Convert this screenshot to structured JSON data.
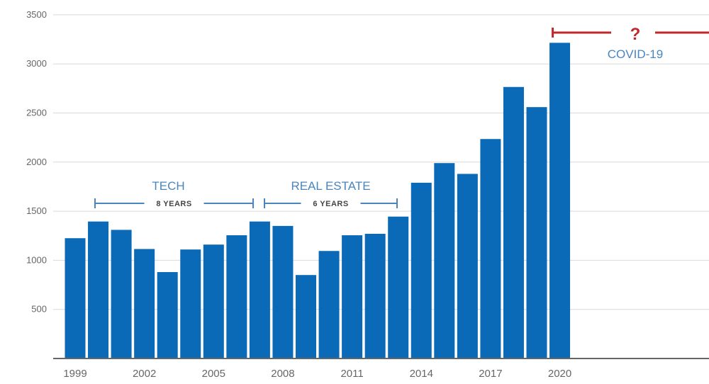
{
  "chart_data": {
    "type": "bar",
    "title": "",
    "xlabel": "",
    "ylabel": "",
    "x": [
      1999,
      2000,
      2001,
      2002,
      2003,
      2004,
      2005,
      2006,
      2007,
      2008,
      2009,
      2010,
      2011,
      2012,
      2013,
      2014,
      2015,
      2016,
      2017,
      2018,
      2019,
      2020
    ],
    "values": [
      1225,
      1395,
      1310,
      1115,
      880,
      1110,
      1160,
      1255,
      1395,
      1350,
      850,
      1095,
      1255,
      1270,
      1445,
      1790,
      1990,
      1880,
      2235,
      2765,
      2560,
      3215
    ],
    "x_tick_labels": [
      "1999",
      "2002",
      "2005",
      "2008",
      "2011",
      "2014",
      "2017",
      "2020"
    ],
    "y_tick_labels": [
      "500",
      "1000",
      "1500",
      "2000",
      "2500",
      "3000",
      "3500"
    ],
    "y_ticks": [
      500,
      1000,
      1500,
      2000,
      2500,
      3000,
      3500
    ],
    "ylim": [
      0,
      3500
    ],
    "xlim": [
      1999,
      2026
    ],
    "grid": "horizontal",
    "bar_color": "#0a6ab8",
    "annotations": [
      {
        "id": "tech",
        "title": "TECH",
        "duration": "8 YEARS",
        "start": 2000,
        "end": 2007,
        "color": "#4a86bd"
      },
      {
        "id": "real-estate",
        "title": "REAL ESTATE",
        "duration": "6 YEARS",
        "start": 2007,
        "end": 2013,
        "color": "#4a86bd"
      },
      {
        "id": "covid",
        "title": "COVID-19",
        "marker": "?",
        "start": 2020,
        "color": "#c0292b"
      }
    ]
  }
}
